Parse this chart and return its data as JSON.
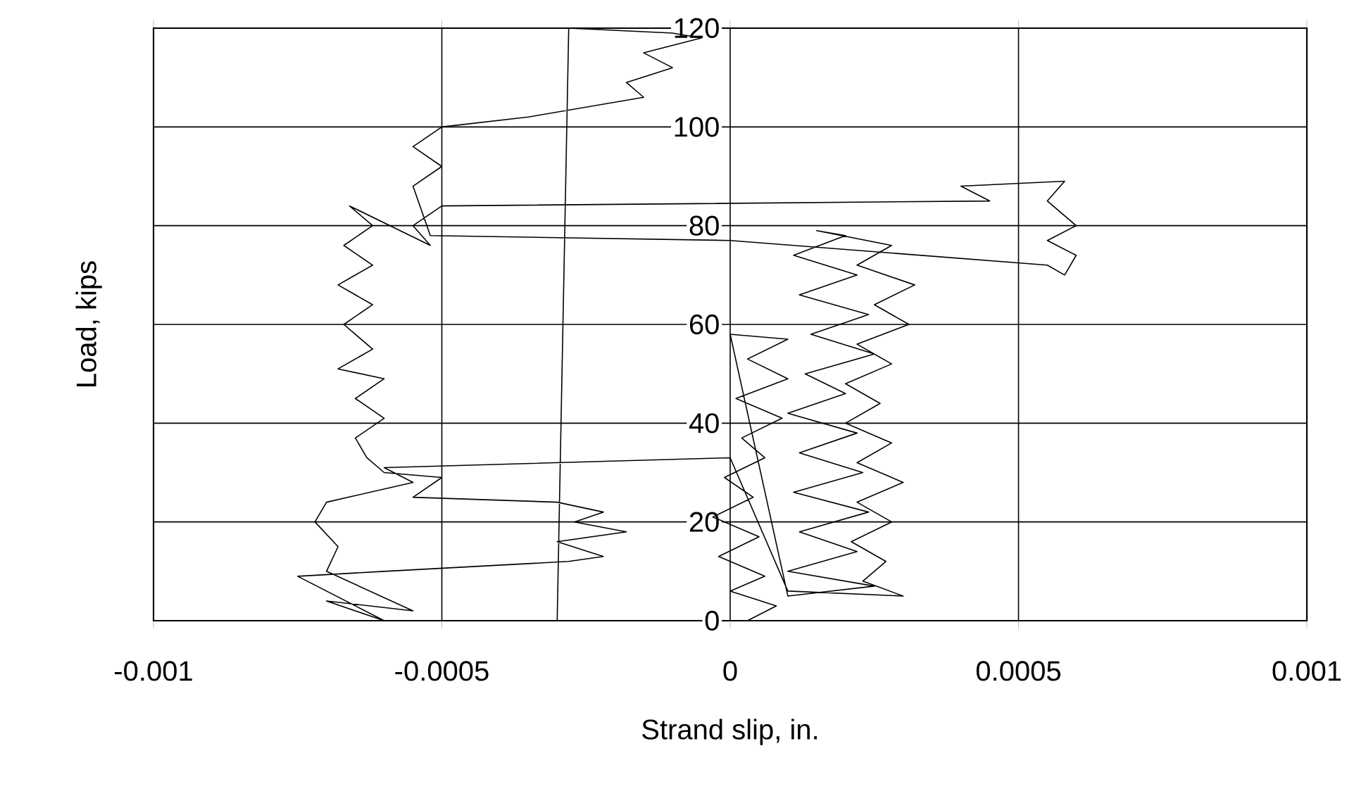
{
  "chart_data": {
    "type": "line",
    "xlabel": "Strand slip, in.",
    "ylabel": "Load, kips",
    "xlim": [
      -0.001,
      0.001
    ],
    "ylim": [
      0,
      120
    ],
    "xticks": [
      -0.001,
      -0.0005,
      0,
      0.0005,
      0.001
    ],
    "yticks": [
      0,
      20,
      40,
      60,
      80,
      100,
      120
    ],
    "grid": true,
    "series": [
      {
        "color": "#000000",
        "x": [
          3e-05,
          8e-05,
          0.0,
          6e-05,
          -2e-05,
          5e-05,
          -3e-05,
          4e-05,
          -1e-05,
          6e-05,
          2e-05,
          9e-05,
          1e-05,
          0.0001,
          3e-05,
          0.0001,
          0.0,
          0.0001,
          0.00025,
          0.0001,
          0.00022,
          0.00012,
          0.00024,
          0.00011,
          0.00023,
          0.00012,
          0.00022,
          0.0001,
          0.0002,
          0.00013,
          0.00025,
          0.00014,
          0.00024,
          0.00012,
          0.00022,
          0.00011,
          0.0002,
          0.00015,
          0.00028,
          0.00022,
          0.00032,
          0.00025,
          0.00031,
          0.00022,
          0.00028,
          0.0002,
          0.00026,
          0.0002,
          0.00028,
          0.00022,
          0.0003,
          0.00022,
          0.00028,
          0.00021,
          0.00027,
          0.00023,
          0.0003,
          0.0001,
          0.0,
          -0.0006,
          -0.00055,
          -0.0007,
          -0.00072,
          -0.00068,
          -0.0007,
          -0.00055,
          -0.0007,
          -0.0006,
          -0.00075,
          -0.0006,
          -0.00028,
          -0.00022,
          -0.0003,
          -0.00018,
          -0.00027,
          -0.00022,
          -0.0003,
          -0.00055,
          -0.0005,
          -0.0006,
          -0.00063,
          -0.00065,
          -0.0006,
          -0.00065,
          -0.0006,
          -0.00068,
          -0.00062,
          -0.00067,
          -0.00062,
          -0.00068,
          -0.00062,
          -0.00067,
          -0.00062,
          -0.00066,
          -0.00052,
          -0.00055,
          -0.0005,
          0.00045,
          0.0004,
          0.00058,
          0.00055,
          0.0006,
          0.00055,
          0.0006,
          0.00058,
          0.00055,
          0.0,
          -0.00052,
          -0.00055,
          -0.0005,
          -0.00055,
          -0.0005,
          -0.00035,
          -0.00025,
          -0.00015,
          -0.00018,
          -0.0001,
          -0.00015,
          -5e-05,
          -0.0001,
          -0.00028,
          -0.0003
        ],
        "values": [
          0,
          3,
          6,
          9,
          13,
          17,
          21,
          25,
          29,
          33,
          37,
          41,
          45,
          49,
          53,
          57,
          58,
          5,
          7,
          10,
          14,
          18,
          22,
          26,
          30,
          34,
          38,
          42,
          46,
          50,
          54,
          58,
          62,
          66,
          70,
          74,
          78,
          79,
          76,
          72,
          68,
          64,
          60,
          56,
          52,
          48,
          44,
          40,
          36,
          32,
          28,
          24,
          20,
          16,
          12,
          8,
          5,
          6,
          33,
          31,
          28,
          24,
          20,
          15,
          10,
          2,
          4,
          0,
          9,
          10,
          12,
          13,
          16,
          18,
          20,
          22,
          24,
          25,
          29,
          30,
          33,
          37,
          41,
          45,
          49,
          51,
          55,
          60,
          64,
          68,
          72,
          76,
          80,
          84,
          76,
          80,
          84,
          85,
          88,
          89,
          85,
          80,
          77,
          74,
          70,
          72,
          77,
          78,
          88,
          92,
          96,
          100,
          102,
          104,
          106,
          109,
          112,
          115,
          118,
          119,
          120,
          0
        ]
      }
    ]
  }
}
